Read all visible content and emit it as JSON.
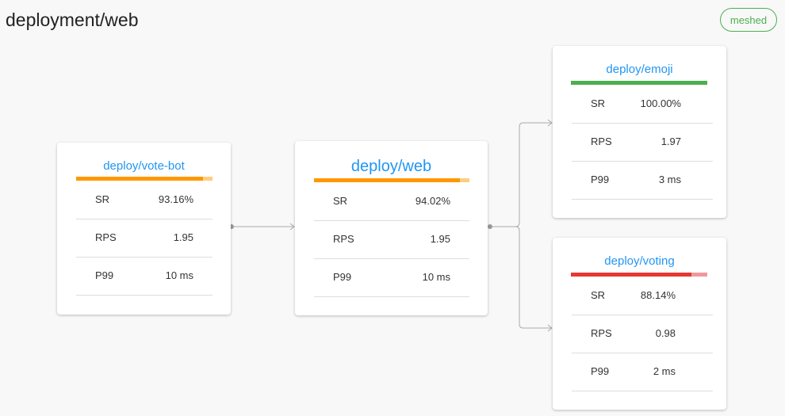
{
  "header": {
    "title": "deployment/web",
    "status_badge": "meshed"
  },
  "colors": {
    "link": "#2196f3",
    "healthy": "#4caf50",
    "warning": "#ff9800",
    "warning_light": "#ffcc80",
    "error": "#e53935",
    "error_light": "#ef9a9a",
    "edge": "#aaaaaa"
  },
  "nodes": [
    {
      "name": "deploy/vote-bot",
      "success_rate_fraction": 0.9316,
      "metrics": [
        {
          "label": "SR",
          "value": "93.16%"
        },
        {
          "label": "RPS",
          "value": "1.95"
        },
        {
          "label": "P99",
          "value": "10 ms"
        }
      ]
    },
    {
      "name": "deploy/web",
      "success_rate_fraction": 0.9402,
      "metrics": [
        {
          "label": "SR",
          "value": "94.02%"
        },
        {
          "label": "RPS",
          "value": "1.95"
        },
        {
          "label": "P99",
          "value": "10 ms"
        }
      ]
    },
    {
      "name": "deploy/emoji",
      "success_rate_fraction": 1.0,
      "metrics": [
        {
          "label": "SR",
          "value": "100.00%"
        },
        {
          "label": "RPS",
          "value": "1.97"
        },
        {
          "label": "P99",
          "value": "3 ms"
        }
      ]
    },
    {
      "name": "deploy/voting",
      "success_rate_fraction": 0.8814,
      "metrics": [
        {
          "label": "SR",
          "value": "88.14%"
        },
        {
          "label": "RPS",
          "value": "0.98"
        },
        {
          "label": "P99",
          "value": "2 ms"
        }
      ]
    }
  ]
}
